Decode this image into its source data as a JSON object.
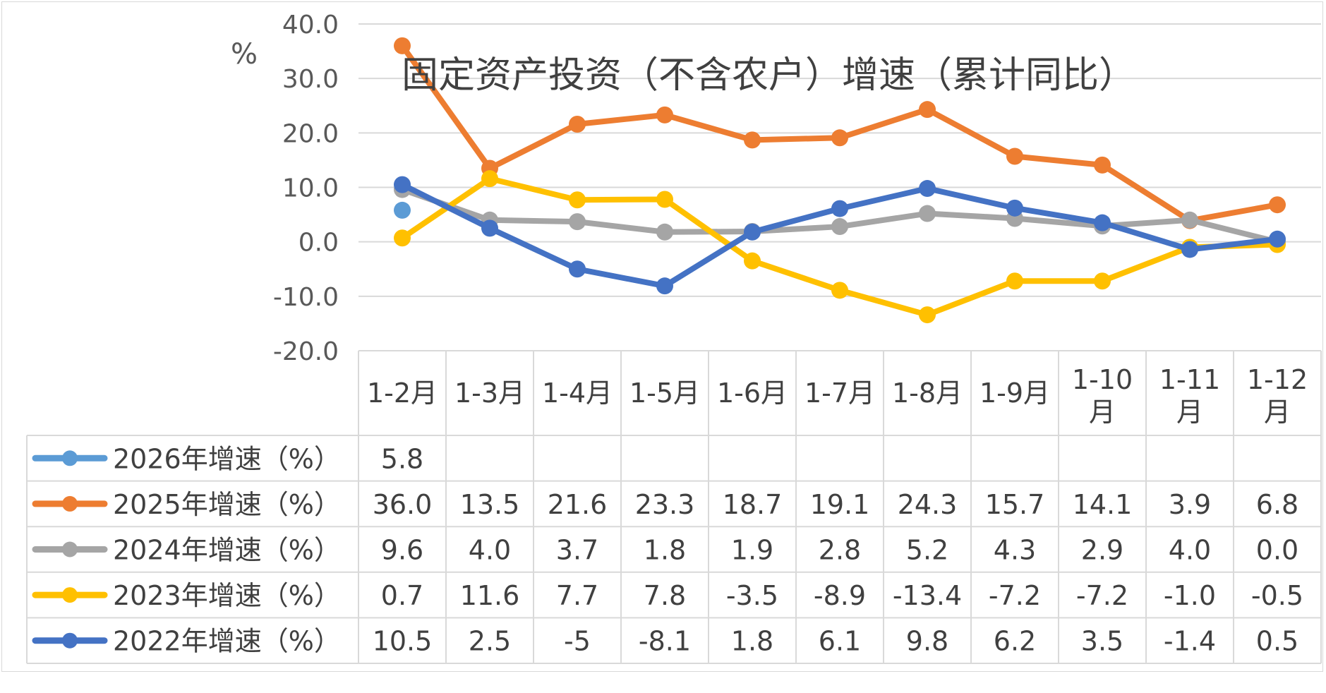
{
  "chart_data": {
    "type": "line",
    "title": "固定资产投资（不含农户）增速（累计同比）",
    "ylabel": "%",
    "ylim": [
      -20,
      40
    ],
    "yticks": [
      "40.0",
      "30.0",
      "20.0",
      "10.0",
      "0.0",
      "-10.0",
      "-20.0"
    ],
    "categories": [
      "1-2月",
      "1-3月",
      "1-4月",
      "1-5月",
      "1-6月",
      "1-7月",
      "1-8月",
      "1-9月",
      "1-10月",
      "1-11月",
      "1-12月"
    ],
    "series": [
      {
        "name": "2026年增速（%）",
        "color": "#5b9bd5",
        "values": [
          5.8,
          null,
          null,
          null,
          null,
          null,
          null,
          null,
          null,
          null,
          null
        ],
        "labels": [
          "5.8",
          "",
          "",
          "",
          "",
          "",
          "",
          "",
          "",
          "",
          ""
        ]
      },
      {
        "name": "2025年增速（%）",
        "color": "#ed7d31",
        "values": [
          36.0,
          13.5,
          21.6,
          23.3,
          18.7,
          19.1,
          24.3,
          15.7,
          14.1,
          3.9,
          6.8
        ],
        "labels": [
          "36.0",
          "13.5",
          "21.6",
          "23.3",
          "18.7",
          "19.1",
          "24.3",
          "15.7",
          "14.1",
          "3.9",
          "6.8"
        ]
      },
      {
        "name": "2024年增速（%）",
        "color": "#a5a5a5",
        "values": [
          9.6,
          4.0,
          3.7,
          1.8,
          1.9,
          2.8,
          5.2,
          4.3,
          2.9,
          4.0,
          0.0
        ],
        "labels": [
          "9.6",
          "4.0",
          "3.7",
          "1.8",
          "1.9",
          "2.8",
          "5.2",
          "4.3",
          "2.9",
          "4.0",
          "0.0"
        ]
      },
      {
        "name": "2023年增速（%）",
        "color": "#ffc000",
        "values": [
          0.7,
          11.6,
          7.7,
          7.8,
          -3.5,
          -8.9,
          -13.4,
          -7.2,
          -7.2,
          -1.0,
          -0.5
        ],
        "labels": [
          "0.7",
          "11.6",
          "7.7",
          "7.8",
          "-3.5",
          "-8.9",
          "-13.4",
          "-7.2",
          "-7.2",
          "-1.0",
          "-0.5"
        ]
      },
      {
        "name": "2022年增速（%）",
        "color": "#4472c4",
        "values": [
          10.5,
          2.5,
          -5,
          -8.1,
          1.8,
          6.1,
          9.8,
          6.2,
          3.5,
          -1.4,
          0.5
        ],
        "labels": [
          "10.5",
          "2.5",
          "-5",
          "-8.1",
          "1.8",
          "6.1",
          "9.8",
          "6.2",
          "3.5",
          "-1.4",
          "0.5"
        ]
      }
    ],
    "grid": true,
    "legend": "data-table-left"
  }
}
